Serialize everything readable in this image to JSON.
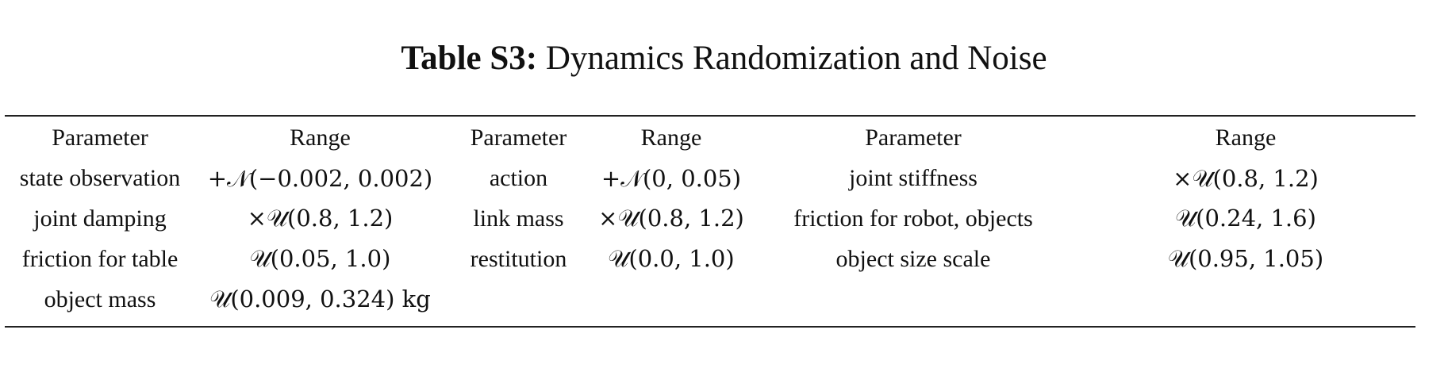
{
  "caption": {
    "label": "Table S3:",
    "text": "Dynamics Randomization and Noise"
  },
  "table": {
    "headers": [
      "Parameter",
      "Range",
      "Parameter",
      "Range",
      "Parameter",
      "Range"
    ],
    "rows": [
      [
        "state observation",
        "+𝒩(−0.002, 0.002)",
        "action",
        "+𝒩(0, 0.05)",
        "joint stiffness",
        "×𝒰(0.8, 1.2)"
      ],
      [
        "joint damping",
        "×𝒰(0.8, 1.2)",
        "link mass",
        "×𝒰(0.8, 1.2)",
        "friction for robot, objects",
        "𝒰(0.24, 1.6)"
      ],
      [
        "friction for table",
        "𝒰(0.05, 1.0)",
        "restitution",
        "𝒰(0.0, 1.0)",
        "object size scale",
        "𝒰(0.95, 1.05)"
      ],
      [
        "object mass",
        "𝒰(0.009, 0.324) kg",
        "",
        "",
        "",
        ""
      ]
    ]
  }
}
